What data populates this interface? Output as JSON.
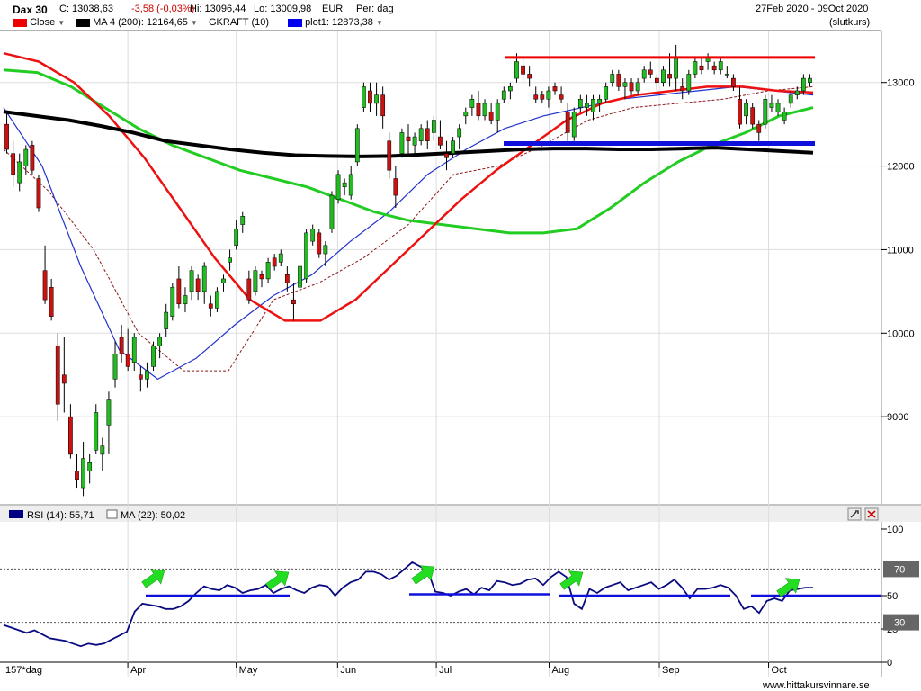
{
  "header": {
    "symbol": "Dax 30",
    "close": "C: 13038,63",
    "change": "-3,58 (-0,03%)",
    "high": "Hi: 13096,44",
    "low": "Lo: 13009,98",
    "currency": "EUR",
    "period": "Per: dag",
    "date_range": "27Feb 2020 - 09Oct 2020",
    "price_type": "(slutkurs)"
  },
  "legend": {
    "close": "Close",
    "ma": "MA 4 (200): 12164,65",
    "gkraft": "GKRAFT (10)",
    "plot1": "plot1: 12873,38"
  },
  "rsi_legend": {
    "rsi": "RSI (14): 55,71",
    "ma": "MA (22): 50,02"
  },
  "footer": {
    "days": "157*dag",
    "watermark": "www.hittakursvinnare.se"
  },
  "colors": {
    "up": "#22bb22",
    "down": "#cc1111",
    "ma_black": "#000000",
    "ma_green": "#22cc22",
    "ma_red": "#ee1111",
    "ma_blue": "#2233cc",
    "level": "#1010dd",
    "resistance": "#ee0000",
    "arrow": "#22dd22"
  },
  "chart_data": [
    {
      "type": "candlestick",
      "ylim": [
        8000,
        13600
      ],
      "yticks": [
        "13000",
        "12000",
        "11000",
        "10000",
        "9000"
      ],
      "xticks": [
        "Apr",
        "May",
        "Jun",
        "Jul",
        "Aug",
        "Sep",
        "Oct"
      ],
      "candles": [
        [
          12500,
          12650,
          12150,
          12200
        ],
        [
          12150,
          12300,
          11750,
          11900
        ],
        [
          11800,
          12150,
          11700,
          12050
        ],
        [
          12000,
          12250,
          11900,
          12200
        ],
        [
          12250,
          12300,
          11900,
          11950
        ],
        [
          11850,
          11900,
          11450,
          11500
        ],
        [
          10750,
          11050,
          10350,
          10400
        ],
        [
          10550,
          10650,
          10150,
          10200
        ],
        [
          9850,
          10000,
          8950,
          9150
        ],
        [
          9500,
          9950,
          9050,
          9400
        ],
        [
          9000,
          9150,
          8500,
          8550
        ],
        [
          8350,
          8550,
          8150,
          8250
        ],
        [
          8150,
          8700,
          8050,
          8500
        ],
        [
          8350,
          8550,
          8200,
          8450
        ],
        [
          8600,
          9150,
          8550,
          9050
        ],
        [
          8550,
          8750,
          8350,
          8650
        ],
        [
          8900,
          9300,
          8550,
          9200
        ],
        [
          9450,
          9900,
          9350,
          9750
        ],
        [
          9950,
          10100,
          9650,
          9750
        ],
        [
          9750,
          10050,
          9550,
          9600
        ],
        [
          9650,
          10000,
          9550,
          9950
        ],
        [
          9500,
          9600,
          9300,
          9450
        ],
        [
          9450,
          9650,
          9350,
          9550
        ],
        [
          9600,
          9900,
          9550,
          9850
        ],
        [
          9850,
          10000,
          9700,
          9950
        ],
        [
          10050,
          10350,
          9950,
          10250
        ],
        [
          10200,
          10600,
          10150,
          10550
        ],
        [
          10650,
          10800,
          10300,
          10350
        ],
        [
          10350,
          10550,
          10250,
          10450
        ],
        [
          10500,
          10800,
          10400,
          10750
        ],
        [
          10650,
          10700,
          10400,
          10500
        ],
        [
          10500,
          10850,
          10350,
          10800
        ],
        [
          10350,
          10450,
          10200,
          10300
        ],
        [
          10300,
          10550,
          10250,
          10500
        ],
        [
          10600,
          10700,
          10500,
          10650
        ],
        [
          10850,
          11000,
          10750,
          10900
        ],
        [
          11050,
          11350,
          11000,
          11250
        ],
        [
          11300,
          11450,
          11200,
          11400
        ],
        [
          10650,
          10750,
          10350,
          10400
        ],
        [
          10500,
          10800,
          10450,
          10750
        ],
        [
          10700,
          10750,
          10550,
          10650
        ],
        [
          10650,
          10900,
          10600,
          10850
        ],
        [
          10900,
          10950,
          10750,
          10800
        ],
        [
          10850,
          11000,
          10800,
          10950
        ],
        [
          10700,
          10800,
          10500,
          10600
        ],
        [
          10400,
          10600,
          10150,
          10350
        ],
        [
          10550,
          10850,
          10450,
          10800
        ],
        [
          10650,
          11250,
          10600,
          11200
        ],
        [
          11100,
          11300,
          11050,
          11250
        ],
        [
          11200,
          11250,
          10900,
          10950
        ],
        [
          10950,
          11100,
          10800,
          11050
        ],
        [
          11250,
          11700,
          11200,
          11650
        ],
        [
          11600,
          11950,
          11550,
          11900
        ],
        [
          11750,
          11850,
          11650,
          11800
        ],
        [
          11650,
          12000,
          11600,
          11900
        ],
        [
          12050,
          12500,
          12000,
          12450
        ],
        [
          12700,
          13000,
          12650,
          12950
        ],
        [
          12900,
          13000,
          12650,
          12750
        ],
        [
          12750,
          13000,
          12600,
          12850
        ],
        [
          12850,
          12950,
          12450,
          12600
        ],
        [
          12300,
          12400,
          11850,
          11950
        ],
        [
          11850,
          12000,
          11500,
          11650
        ],
        [
          12150,
          12450,
          12100,
          12400
        ],
        [
          12350,
          12500,
          12150,
          12300
        ],
        [
          12250,
          12400,
          12150,
          12350
        ],
        [
          12300,
          12500,
          12250,
          12450
        ],
        [
          12450,
          12550,
          12200,
          12300
        ],
        [
          12400,
          12600,
          12300,
          12550
        ],
        [
          12350,
          12550,
          12200,
          12250
        ],
        [
          12150,
          12300,
          11950,
          12100
        ],
        [
          12150,
          12350,
          12100,
          12300
        ],
        [
          12350,
          12500,
          12200,
          12450
        ],
        [
          12600,
          12700,
          12500,
          12650
        ],
        [
          12700,
          12850,
          12600,
          12800
        ],
        [
          12750,
          12900,
          12550,
          12600
        ],
        [
          12600,
          12800,
          12550,
          12750
        ],
        [
          12650,
          12750,
          12500,
          12550
        ],
        [
          12550,
          12800,
          12400,
          12750
        ],
        [
          12800,
          12950,
          12750,
          12900
        ],
        [
          12900,
          13000,
          12800,
          12950
        ],
        [
          13050,
          13350,
          13000,
          13250
        ],
        [
          13200,
          13300,
          13000,
          13100
        ],
        [
          13100,
          13200,
          12950,
          13050
        ],
        [
          12850,
          12950,
          12750,
          12800
        ],
        [
          12850,
          12900,
          12750,
          12800
        ],
        [
          12800,
          12950,
          12700,
          12900
        ],
        [
          12950,
          13000,
          12850,
          12900
        ],
        [
          12850,
          12950,
          12750,
          12800
        ],
        [
          12650,
          12750,
          12300,
          12400
        ],
        [
          12350,
          12700,
          12300,
          12650
        ],
        [
          12700,
          12850,
          12650,
          12800
        ],
        [
          12700,
          12850,
          12600,
          12750
        ],
        [
          12650,
          12850,
          12550,
          12800
        ],
        [
          12750,
          12850,
          12650,
          12800
        ],
        [
          12800,
          13000,
          12750,
          12950
        ],
        [
          13000,
          13150,
          12950,
          13100
        ],
        [
          13100,
          13150,
          12900,
          12950
        ],
        [
          12950,
          13050,
          12800,
          13000
        ],
        [
          13000,
          13050,
          12850,
          12900
        ],
        [
          12900,
          13050,
          12850,
          13000
        ],
        [
          13050,
          13200,
          13000,
          13150
        ],
        [
          13150,
          13250,
          13050,
          13100
        ],
        [
          13050,
          13100,
          12900,
          13000
        ],
        [
          13000,
          13200,
          12950,
          13150
        ],
        [
          13100,
          13350,
          12950,
          13050
        ],
        [
          13050,
          13450,
          12900,
          13300
        ],
        [
          12950,
          13050,
          12800,
          12900
        ],
        [
          12900,
          13150,
          12850,
          13100
        ],
        [
          13100,
          13300,
          13050,
          13250
        ],
        [
          13200,
          13300,
          13100,
          13150
        ],
        [
          13250,
          13350,
          13150,
          13300
        ],
        [
          13200,
          13250,
          13100,
          13150
        ],
        [
          13150,
          13300,
          13100,
          13250
        ],
        [
          13100,
          13200,
          13050,
          13100
        ],
        [
          13050,
          13100,
          12900,
          12950
        ],
        [
          12800,
          12950,
          12450,
          12500
        ],
        [
          12600,
          12800,
          12500,
          12750
        ],
        [
          12700,
          12750,
          12450,
          12500
        ],
        [
          12500,
          12550,
          12300,
          12400
        ],
        [
          12500,
          12850,
          12450,
          12800
        ],
        [
          12700,
          12850,
          12650,
          12750
        ],
        [
          12650,
          12800,
          12600,
          12750
        ],
        [
          12550,
          12700,
          12500,
          12650
        ],
        [
          12750,
          12900,
          12700,
          12850
        ],
        [
          12850,
          12950,
          12800,
          12900
        ],
        [
          12900,
          13100,
          12850,
          13050
        ],
        [
          13000,
          13100,
          12950,
          13050
        ]
      ],
      "ma_black": [
        12650,
        12600,
        12550,
        12480,
        12400,
        12300,
        12250,
        12200,
        12160,
        12130,
        12120,
        12115,
        12120,
        12140,
        12160,
        12180,
        12200,
        12210,
        12210,
        12200,
        12200,
        12210,
        12220,
        12200,
        12180,
        12160
      ],
      "ma_green": [
        13150,
        13120,
        12950,
        12700,
        12450,
        12250,
        12100,
        11950,
        11850,
        11750,
        11600,
        11450,
        11350,
        11300,
        11250,
        11200,
        11200,
        11250,
        11500,
        11800,
        12050,
        12250,
        12400,
        12600,
        12700
      ],
      "ma_red": [
        13350,
        13250,
        13000,
        12600,
        12100,
        11500,
        10900,
        10400,
        10150,
        10150,
        10400,
        10800,
        11200,
        11600,
        11950,
        12250,
        12550,
        12750,
        12850,
        12900,
        12950,
        12950,
        12900,
        12880
      ],
      "ma_blue": [
        12700,
        12000,
        10800,
        9800,
        9450,
        9700,
        10100,
        10450,
        10700,
        11100,
        11450,
        11900,
        12200,
        12450,
        12600,
        12700,
        12800,
        12850,
        12900,
        12950,
        12900,
        12850
      ],
      "stop_dashed": [
        12200,
        11700,
        11000,
        10000,
        9550,
        9550,
        10400,
        10600,
        10900,
        11300,
        11900,
        12000,
        12250,
        12550,
        12700,
        12750,
        12800,
        12900,
        12950
      ],
      "resistance_level": 13300,
      "support_level": 12270
    },
    {
      "type": "line",
      "name": "RSI (14)",
      "ylim": [
        0,
        100
      ],
      "yticks": [
        "100",
        "50",
        "25",
        "0"
      ],
      "levels": [
        "70",
        "30"
      ],
      "values": [
        28,
        26,
        24,
        22,
        24,
        21,
        18,
        17,
        16,
        14,
        12,
        14,
        13,
        14,
        17,
        20,
        23,
        38,
        44,
        43,
        42,
        40,
        40,
        42,
        46,
        52,
        57,
        55,
        54,
        58,
        56,
        52,
        54,
        55,
        58,
        52,
        55,
        57,
        54,
        52,
        56,
        58,
        57,
        50,
        56,
        60,
        62,
        68,
        68,
        66,
        62,
        65,
        70,
        75,
        72,
        69,
        53,
        52,
        50,
        53,
        55,
        51,
        56,
        54,
        61,
        60,
        58,
        59,
        62,
        63,
        58,
        64,
        68,
        64,
        44,
        40,
        55,
        52,
        56,
        58,
        60,
        54,
        56,
        58,
        60,
        55,
        58,
        62,
        56,
        48,
        55,
        55,
        56,
        58,
        56,
        50,
        40,
        42,
        37,
        46,
        48,
        46,
        54,
        55,
        56,
        56
      ],
      "support_lines": [
        50,
        51,
        50,
        50,
        50
      ]
    }
  ]
}
